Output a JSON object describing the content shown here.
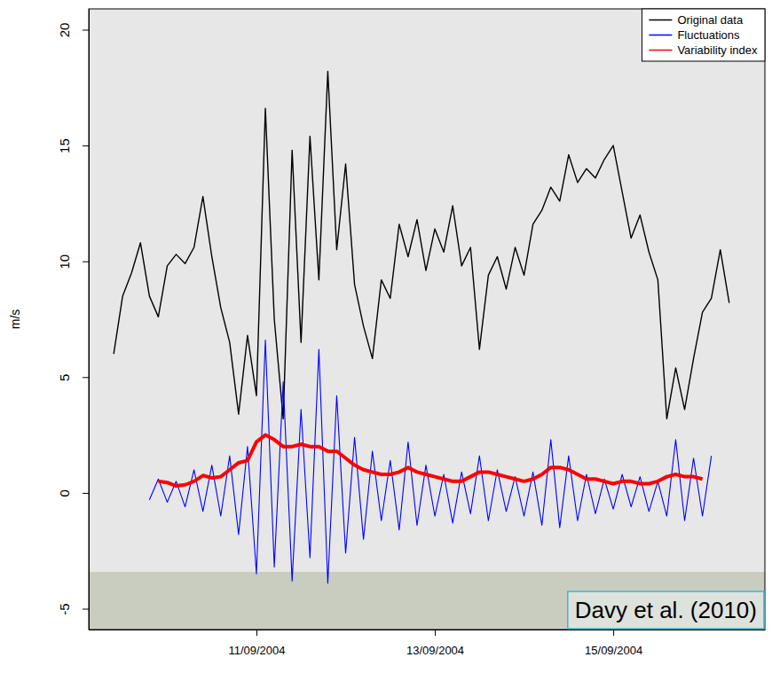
{
  "chart_data": {
    "type": "line",
    "y_label": "m/s",
    "annotation": "Davy et al. (2010)",
    "x": [
      9.4,
      9.5,
      9.6,
      9.7,
      9.8,
      9.9,
      10.0,
      10.1,
      10.2,
      10.3,
      10.4,
      10.5,
      10.6,
      10.7,
      10.8,
      10.9,
      11.0,
      11.1,
      11.2,
      11.3,
      11.4,
      11.5,
      11.6,
      11.7,
      11.8,
      11.9,
      12.0,
      12.1,
      12.2,
      12.3,
      12.4,
      12.5,
      12.6,
      12.7,
      12.8,
      12.9,
      13.0,
      13.1,
      13.2,
      13.3,
      13.4,
      13.5,
      13.6,
      13.7,
      13.8,
      13.9,
      14.0,
      14.1,
      14.2,
      14.3,
      14.4,
      14.5,
      14.6,
      14.7,
      14.8,
      14.9,
      15.0,
      15.1,
      15.2,
      15.3,
      15.4,
      15.5,
      15.6,
      15.7,
      15.8,
      15.9,
      16.0,
      16.1,
      16.2,
      16.3
    ],
    "series": [
      {
        "name": "Original data",
        "color": "#000000",
        "line_style": "solid",
        "values": [
          6.0,
          8.5,
          9.5,
          10.8,
          8.5,
          7.6,
          9.8,
          10.3,
          9.9,
          10.6,
          12.8,
          10.2,
          8.0,
          6.5,
          3.4,
          6.8,
          4.2,
          16.6,
          7.5,
          3.2,
          14.8,
          6.5,
          15.4,
          9.2,
          18.2,
          10.5,
          14.2,
          9.0,
          7.2,
          5.8,
          9.2,
          8.4,
          11.6,
          10.2,
          11.8,
          9.6,
          11.4,
          10.4,
          12.4,
          9.8,
          10.6,
          6.2,
          9.4,
          10.2,
          8.8,
          10.6,
          9.4,
          11.6,
          12.2,
          13.2,
          12.6,
          14.6,
          13.4,
          14.0,
          13.6,
          14.4,
          15.0,
          13.0,
          11.0,
          12.0,
          10.4,
          9.2,
          3.2,
          5.4,
          3.6,
          5.8,
          7.8,
          8.4,
          10.5,
          8.2
        ]
      },
      {
        "name": "Fluctuations",
        "color": "#0000ff",
        "line_style": "solid",
        "values": [
          null,
          null,
          null,
          null,
          -0.3,
          0.6,
          -0.4,
          0.5,
          -0.6,
          1.0,
          -0.8,
          1.2,
          -1.0,
          1.6,
          -1.8,
          2.0,
          -3.5,
          6.6,
          -3.2,
          4.8,
          -3.8,
          3.6,
          -2.8,
          6.2,
          -3.9,
          4.2,
          -2.6,
          2.4,
          -2.0,
          1.8,
          -1.2,
          1.4,
          -1.6,
          2.2,
          -1.4,
          1.2,
          -1.0,
          0.8,
          -1.3,
          0.9,
          -0.9,
          1.6,
          -1.2,
          1.0,
          -0.8,
          0.7,
          -1.0,
          0.9,
          -1.4,
          2.3,
          -1.5,
          1.6,
          -1.2,
          0.8,
          -0.9,
          0.6,
          -0.7,
          0.8,
          -0.6,
          0.7,
          -0.8,
          0.5,
          -1.0,
          2.3,
          -1.2,
          1.5,
          -1.0,
          1.6,
          null,
          null
        ]
      },
      {
        "name": "Variability index",
        "color": "#ff0000",
        "line_style": "solid",
        "values": [
          null,
          null,
          null,
          null,
          null,
          0.5,
          0.45,
          0.3,
          0.35,
          0.5,
          0.75,
          0.65,
          0.7,
          1.0,
          1.3,
          1.4,
          2.2,
          2.5,
          2.3,
          2.0,
          2.0,
          2.1,
          2.0,
          2.0,
          1.8,
          1.8,
          1.5,
          1.2,
          1.0,
          0.9,
          0.8,
          0.8,
          0.9,
          1.1,
          0.9,
          0.8,
          0.7,
          0.6,
          0.5,
          0.5,
          0.7,
          0.9,
          0.9,
          0.8,
          0.7,
          0.6,
          0.5,
          0.6,
          0.8,
          1.1,
          1.1,
          1.0,
          0.8,
          0.6,
          0.6,
          0.5,
          0.4,
          0.5,
          0.5,
          0.4,
          0.4,
          0.5,
          0.7,
          0.8,
          0.7,
          0.7,
          0.6,
          null,
          null,
          null
        ]
      }
    ],
    "xlim": [
      9.12,
      16.7
    ],
    "xticks": [
      {
        "value": 11,
        "label": "11/09/2004"
      },
      {
        "value": 13,
        "label": "13/09/2004"
      },
      {
        "value": 15,
        "label": "15/09/2004"
      }
    ],
    "ylim": [
      -5.9,
      20.9
    ],
    "yticks": [
      -5,
      0,
      5,
      10,
      15,
      20
    ],
    "grid": false,
    "legend": "top-right"
  }
}
